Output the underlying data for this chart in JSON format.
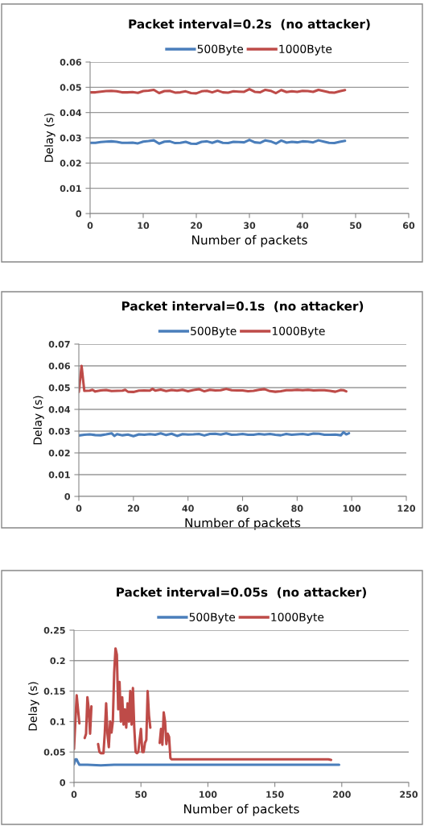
{
  "chart_data": [
    {
      "type": "line",
      "title": "Packet interval=0.2s  (no attacker)",
      "xlabel": "Number of packets",
      "ylabel": "Delay (s)",
      "xlim": [
        0,
        60
      ],
      "xticks": [
        0,
        10,
        20,
        30,
        40,
        50,
        60
      ],
      "ylim": [
        0,
        0.06
      ],
      "yticks": [
        0,
        0.01,
        0.02,
        0.03,
        0.04,
        0.05,
        0.06
      ],
      "grid": "y",
      "legend": "top",
      "marker": "none",
      "line_style": "solid",
      "x": [
        0,
        1,
        2,
        3,
        4,
        5,
        6,
        7,
        8,
        9,
        10,
        11,
        12,
        13,
        14,
        15,
        16,
        17,
        18,
        19,
        20,
        21,
        22,
        23,
        24,
        25,
        26,
        27,
        28,
        29,
        30,
        31,
        32,
        33,
        34,
        35,
        36,
        37,
        38,
        39,
        40,
        41,
        42,
        43,
        44,
        45,
        46,
        47,
        48
      ],
      "series": [
        {
          "name": "500Byte",
          "color": "#4a7ebb",
          "values": [
            0.028,
            0.028,
            0.0283,
            0.0285,
            0.0286,
            0.0284,
            0.028,
            0.028,
            0.0281,
            0.0278,
            0.0285,
            0.0287,
            0.029,
            0.0277,
            0.0285,
            0.0286,
            0.0279,
            0.028,
            0.0284,
            0.0277,
            0.0276,
            0.0284,
            0.0286,
            0.028,
            0.0287,
            0.028,
            0.0279,
            0.0284,
            0.0283,
            0.0282,
            0.0292,
            0.0282,
            0.028,
            0.029,
            0.0286,
            0.0277,
            0.0289,
            0.0281,
            0.0284,
            0.0282,
            0.0286,
            0.0285,
            0.0282,
            0.029,
            0.0285,
            0.028,
            0.0279,
            0.0284,
            0.0288
          ]
        },
        {
          "name": "1000Byte",
          "color": "#be4b48",
          "values": [
            0.048,
            0.048,
            0.0483,
            0.0485,
            0.0486,
            0.0484,
            0.048,
            0.048,
            0.0481,
            0.0478,
            0.0485,
            0.0487,
            0.049,
            0.0477,
            0.0485,
            0.0486,
            0.0479,
            0.048,
            0.0484,
            0.0477,
            0.0476,
            0.0484,
            0.0486,
            0.048,
            0.0487,
            0.048,
            0.0479,
            0.0484,
            0.0483,
            0.0482,
            0.0493,
            0.0482,
            0.048,
            0.049,
            0.0486,
            0.0477,
            0.0489,
            0.0481,
            0.0484,
            0.0482,
            0.0486,
            0.0485,
            0.0482,
            0.049,
            0.0485,
            0.048,
            0.0479,
            0.0484,
            0.0489
          ]
        }
      ]
    },
    {
      "type": "line",
      "title": "Packet interval=0.1s  (no attacker)",
      "xlabel": "Number of packets",
      "ylabel": "Delay (s)",
      "xlim": [
        0,
        120
      ],
      "xticks": [
        0,
        20,
        40,
        60,
        80,
        100,
        120
      ],
      "ylim": [
        0,
        0.07
      ],
      "yticks": [
        0,
        0.01,
        0.02,
        0.03,
        0.04,
        0.05,
        0.06,
        0.07
      ],
      "grid": "y",
      "legend": "top",
      "marker": "none",
      "line_style": "solid",
      "series": [
        {
          "name": "500Byte",
          "color": "#4a7ebb",
          "x": [
            0,
            2,
            4,
            6,
            8,
            10,
            12,
            13,
            14,
            16,
            18,
            20,
            22,
            24,
            26,
            28,
            30,
            32,
            34,
            36,
            38,
            40,
            42,
            44,
            46,
            48,
            50,
            52,
            54,
            56,
            58,
            60,
            62,
            64,
            66,
            68,
            70,
            72,
            74,
            76,
            78,
            80,
            82,
            84,
            86,
            88,
            90,
            92,
            94,
            96,
            97,
            98,
            99
          ],
          "values": [
            0.028,
            0.0283,
            0.0285,
            0.0282,
            0.0281,
            0.0285,
            0.029,
            0.0278,
            0.0286,
            0.0281,
            0.0284,
            0.0277,
            0.0285,
            0.0283,
            0.0286,
            0.0283,
            0.029,
            0.0282,
            0.0288,
            0.0278,
            0.0286,
            0.0284,
            0.0285,
            0.0287,
            0.028,
            0.0287,
            0.0288,
            0.0284,
            0.029,
            0.0283,
            0.0284,
            0.0287,
            0.0283,
            0.0283,
            0.0287,
            0.0284,
            0.0287,
            0.0283,
            0.0281,
            0.0287,
            0.0283,
            0.0285,
            0.0287,
            0.0283,
            0.0289,
            0.0288,
            0.0283,
            0.0283,
            0.0284,
            0.0281,
            0.0295,
            0.0285,
            0.029
          ]
        },
        {
          "name": "1000Byte",
          "color": "#be4b48",
          "x": [
            0,
            1,
            2,
            4,
            5,
            6,
            8,
            10,
            12,
            14,
            16,
            17,
            18,
            20,
            22,
            24,
            26,
            27,
            28,
            30,
            32,
            34,
            36,
            38,
            40,
            42,
            44,
            46,
            48,
            50,
            52,
            54,
            56,
            58,
            60,
            62,
            64,
            66,
            68,
            70,
            72,
            74,
            76,
            78,
            80,
            82,
            84,
            86,
            88,
            90,
            92,
            94,
            96,
            97,
            98
          ],
          "values": [
            0.048,
            0.06,
            0.0485,
            0.0486,
            0.049,
            0.0482,
            0.0487,
            0.0489,
            0.0484,
            0.0485,
            0.0486,
            0.049,
            0.0481,
            0.048,
            0.0486,
            0.0487,
            0.0486,
            0.0494,
            0.0486,
            0.0491,
            0.0484,
            0.0489,
            0.0486,
            0.049,
            0.0483,
            0.0489,
            0.0493,
            0.0483,
            0.049,
            0.0487,
            0.0488,
            0.0494,
            0.0488,
            0.0487,
            0.0487,
            0.0483,
            0.0485,
            0.049,
            0.0493,
            0.0484,
            0.0481,
            0.0483,
            0.0488,
            0.0488,
            0.049,
            0.0488,
            0.049,
            0.0487,
            0.0488,
            0.0488,
            0.0485,
            0.0481,
            0.0489,
            0.0488,
            0.0483
          ]
        }
      ]
    },
    {
      "type": "line",
      "title": "Packet interval=0.05s  (no attacker)",
      "xlabel": "Number of packets",
      "ylabel": "Delay (s)",
      "xlim": [
        0,
        250
      ],
      "xticks": [
        0,
        50,
        100,
        150,
        200,
        250
      ],
      "ylim": [
        0,
        0.25
      ],
      "yticks": [
        0,
        0.05,
        0.1,
        0.15,
        0.2,
        0.25
      ],
      "grid": "y",
      "legend": "top",
      "marker": "none",
      "line_style": "solid",
      "series": [
        {
          "name": "500Byte",
          "color": "#4a7ebb",
          "x": [
            0,
            1,
            2,
            3,
            4,
            10,
            20,
            30,
            40,
            50,
            60,
            70,
            80,
            90,
            100,
            110,
            120,
            130,
            140,
            150,
            160,
            170,
            180,
            190,
            198
          ],
          "values": [
            0.03,
            0.038,
            0.038,
            0.033,
            0.029,
            0.029,
            0.028,
            0.029,
            0.029,
            0.029,
            0.029,
            0.029,
            0.029,
            0.029,
            0.029,
            0.029,
            0.029,
            0.029,
            0.029,
            0.029,
            0.029,
            0.029,
            0.029,
            0.029,
            0.029
          ]
        },
        {
          "name": "1000Byte",
          "color": "#be4b48",
          "x": [
            0,
            1,
            2,
            3,
            4,
            6,
            8,
            9,
            10,
            11,
            12,
            13,
            15,
            18,
            19,
            20,
            21,
            22,
            23,
            24,
            25,
            26,
            27,
            28,
            29,
            30,
            31,
            32,
            33,
            34,
            35,
            36,
            37,
            38,
            39,
            40,
            41,
            42,
            43,
            44,
            45,
            46,
            47,
            48,
            49,
            50,
            51,
            52,
            53,
            54,
            55,
            56,
            57,
            60,
            64,
            65,
            66,
            67,
            68,
            69,
            70,
            71,
            72,
            73,
            90,
            110,
            130,
            150,
            170,
            190,
            192
          ],
          "values": [
            0.055,
            0.1,
            0.143,
            0.12,
            0.097,
            null,
            0.073,
            0.08,
            0.14,
            0.12,
            0.08,
            0.125,
            null,
            0.063,
            0.05,
            0.048,
            0.048,
            0.048,
            0.082,
            0.13,
            0.08,
            0.058,
            0.1,
            0.082,
            0.1,
            0.18,
            0.22,
            0.21,
            0.12,
            0.165,
            0.1,
            0.14,
            0.095,
            0.12,
            0.09,
            0.13,
            0.1,
            0.15,
            0.095,
            0.155,
            0.09,
            0.05,
            0.048,
            0.05,
            0.07,
            0.088,
            0.05,
            0.05,
            0.065,
            0.07,
            0.15,
            0.11,
            0.09,
            null,
            0.065,
            0.088,
            0.062,
            0.115,
            0.1,
            0.063,
            0.08,
            0.075,
            0.04,
            0.038,
            0.038,
            0.038,
            0.038,
            0.038,
            0.038,
            0.038,
            0.037
          ]
        }
      ]
    }
  ]
}
